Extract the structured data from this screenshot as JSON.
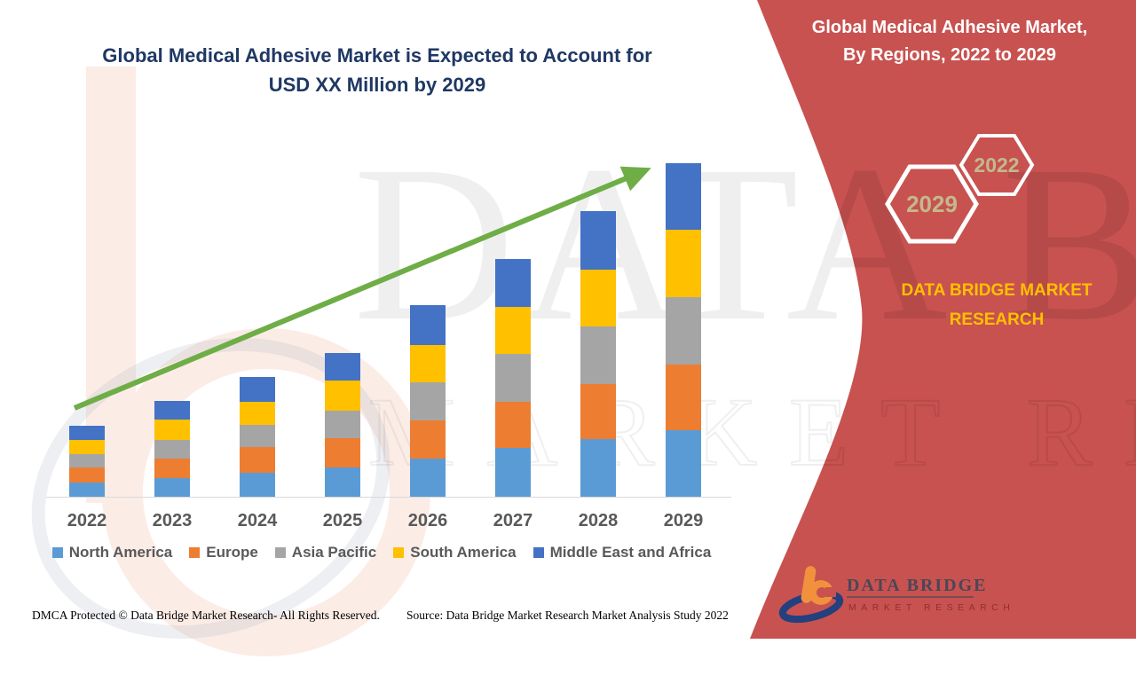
{
  "header": {
    "title_line1": "Global Medical Adhesive Market is Expected to Account for",
    "title_line2": "USD XX Million by 2029"
  },
  "sidebar": {
    "title_line1": "Global Medical Adhesive Market,",
    "title_line2": "By Regions, 2022 to 2029",
    "hexagon_front_label": "2029",
    "hexagon_back_label": "2022",
    "brand_line1": "DATA BRIDGE MARKET",
    "brand_line2": "RESEARCH",
    "logo_name": "DATA BRIDGE",
    "logo_sub": "MARKET RESEARCH",
    "panel_color": "#C85250",
    "brand_text_color": "#FFC000",
    "hexagon_label_color": "#C3B98C"
  },
  "watermark": {
    "line1": "DATA BRIDGE",
    "line2": "MARKET RESEARCH"
  },
  "footer": {
    "left": "DMCA Protected © Data Bridge Market Research- All Rights Reserved.",
    "right": "Source: Data Bridge Market Research Market Analysis Study 2022"
  },
  "chart_data": {
    "type": "bar",
    "stacked": true,
    "title": "Global Medical Adhesive Market is Expected to Account for USD XX Million by 2029",
    "xlabel": "",
    "ylabel": "",
    "units": "relative height units (actual market values masked as USD XX Million)",
    "value_axis_visible": false,
    "gridlines": false,
    "legend_position": "bottom",
    "categories": [
      "2022",
      "2023",
      "2024",
      "2025",
      "2026",
      "2027",
      "2028",
      "2029"
    ],
    "series": [
      {
        "name": "North America",
        "color": "#5B9BD5",
        "values": [
          16,
          21,
          27,
          33,
          43,
          55,
          65,
          75
        ]
      },
      {
        "name": "Europe",
        "color": "#ED7D31",
        "values": [
          17,
          22,
          29,
          33,
          43,
          52,
          62,
          74
        ]
      },
      {
        "name": "Asia Pacific",
        "color": "#A5A5A5",
        "values": [
          15,
          21,
          25,
          31,
          43,
          54,
          65,
          76
        ]
      },
      {
        "name": "South America",
        "color": "#FFC000",
        "values": [
          16,
          23,
          26,
          34,
          42,
          53,
          64,
          76
        ]
      },
      {
        "name": "Middle East and Africa",
        "color": "#4472C4",
        "values": [
          16,
          21,
          28,
          31,
          45,
          54,
          66,
          75
        ]
      }
    ],
    "totals": [
      80,
      108,
      135,
      162,
      216,
      268,
      322,
      376
    ],
    "trendline": {
      "type": "arrow",
      "color": "#6FAD47",
      "direction": "increasing",
      "from_category": "2022",
      "to_category": "2029"
    }
  }
}
